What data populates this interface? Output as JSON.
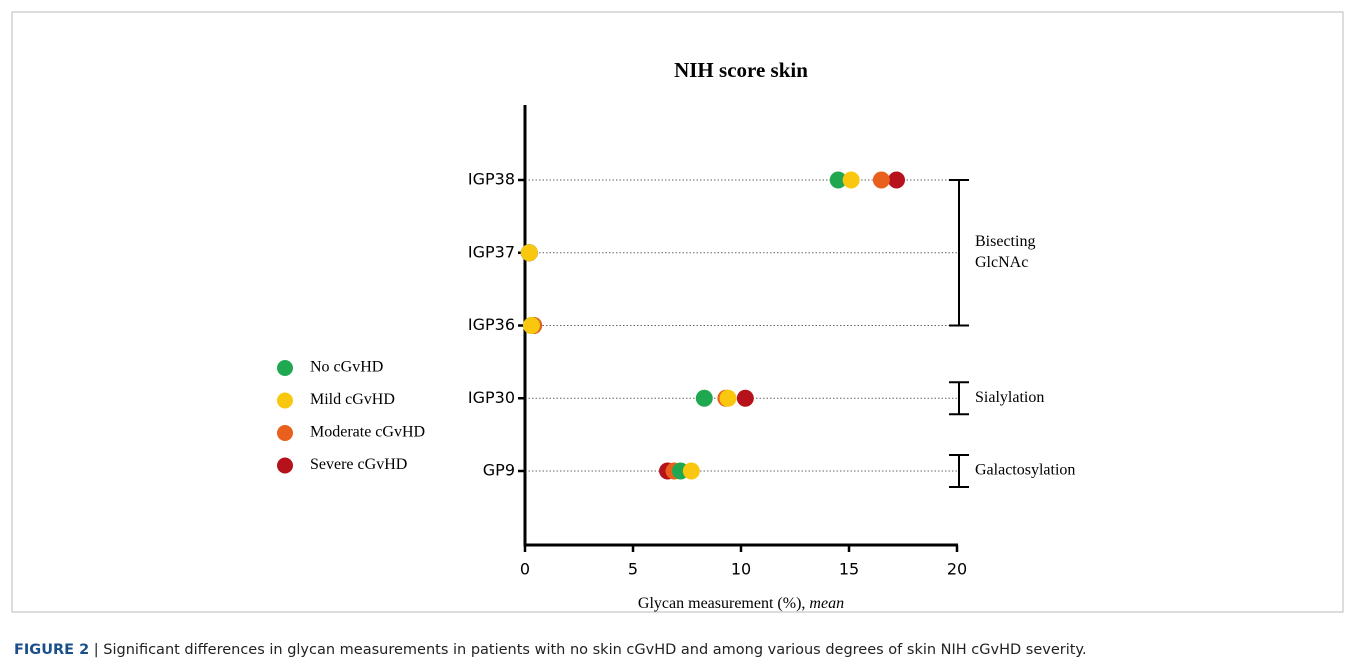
{
  "chart_data": {
    "type": "dot",
    "title": "NIH score skin",
    "x_label": "Glycan measurement (%),",
    "x_label_emphasis": "mean",
    "categories": [
      "IGP38",
      "IGP37",
      "IGP36",
      "IGP30",
      "GP9"
    ],
    "series": [
      {
        "name": "Severe cGvHD",
        "color": "#b5121b",
        "values": [
          17.2,
          0.2,
          0.4,
          10.2,
          6.6
        ]
      },
      {
        "name": "Moderate cGvHD",
        "color": "#e8601c",
        "values": [
          16.5,
          0.2,
          0.4,
          9.3,
          6.9
        ]
      },
      {
        "name": "No cGvHD",
        "color": "#1fa84f",
        "values": [
          14.5,
          0.2,
          0.3,
          8.3,
          7.2
        ]
      },
      {
        "name": "Mild cGvHD",
        "color": "#f9c80e",
        "values": [
          15.1,
          0.2,
          0.3,
          9.4,
          7.7
        ]
      }
    ],
    "legend_order": [
      2,
      3,
      1,
      0
    ],
    "xlim": [
      0,
      20
    ],
    "xticks": [
      0,
      5,
      10,
      15,
      20
    ],
    "annotations": [
      {
        "lines": [
          "Bisecting",
          "GlcNAc"
        ]
      },
      {
        "lines": [
          "Sialylation"
        ]
      },
      {
        "lines": [
          "Galactosylation"
        ]
      }
    ]
  },
  "caption_label": "FIGURE 2",
  "caption": "| Significant differences in glycan measurements in patients with no skin cGvHD and among various degrees of skin NIH cGvHD severity."
}
